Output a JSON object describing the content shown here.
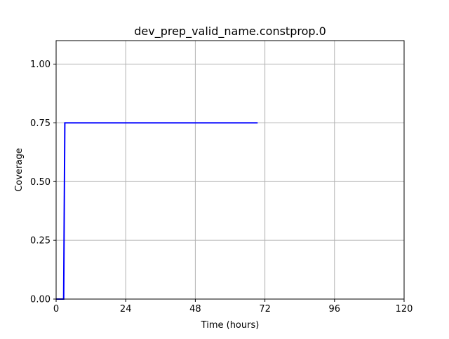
{
  "chart_data": {
    "type": "line",
    "title": "dev_prep_valid_name.constprop.0",
    "xlabel": "Time (hours)",
    "ylabel": "Coverage",
    "xlim": [
      0,
      120
    ],
    "ylim": [
      0,
      1.1
    ],
    "xticks": [
      0,
      24,
      48,
      72,
      96,
      120
    ],
    "xtick_labels": [
      "0",
      "24",
      "48",
      "72",
      "96",
      "120"
    ],
    "yticks": [
      0,
      0.25,
      0.5,
      0.75,
      1.0
    ],
    "ytick_labels": [
      "0.00",
      "0.25",
      "0.50",
      "0.75",
      "1.00"
    ],
    "grid": true,
    "legend": "none",
    "series": [
      {
        "color": "#0000ff",
        "x": [
          0,
          2.6,
          3.0,
          69.5
        ],
        "y": [
          0,
          0,
          0.75,
          0.75
        ]
      }
    ]
  }
}
